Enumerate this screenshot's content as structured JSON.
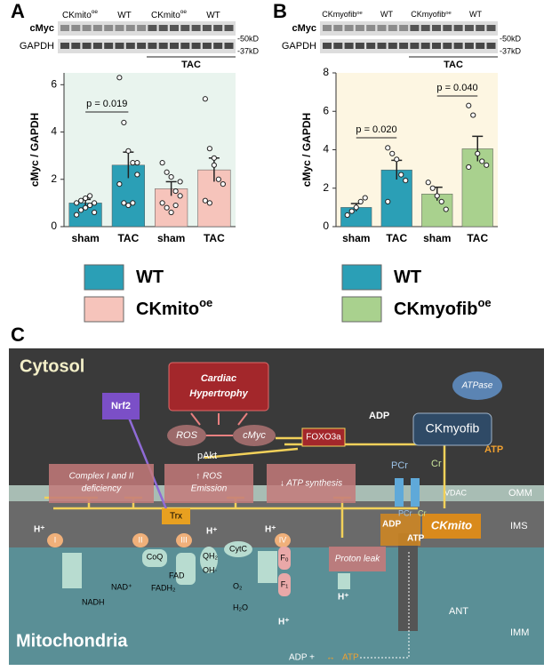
{
  "chart_data": [
    {
      "type": "bar",
      "panel_label": "A",
      "ylabel": "cMyc / GAPDH",
      "categories": [
        "sham",
        "TAC",
        "sham",
        "TAC"
      ],
      "values": [
        1.0,
        2.6,
        1.6,
        2.4
      ],
      "errors": [
        0.15,
        0.55,
        0.3,
        0.5
      ],
      "colors": [
        "#2b9fb6",
        "#2b9fb6",
        "#f6c4bb",
        "#f6c4bb"
      ],
      "points": [
        [
          0.5,
          0.7,
          0.8,
          0.9,
          1.0,
          1.0,
          1.1,
          1.2,
          1.3,
          0.6
        ],
        [
          6.3,
          4.4,
          3.2,
          2.7,
          2.2,
          1.8,
          1.0,
          0.9,
          1.0,
          2.7
        ],
        [
          2.7,
          2.3,
          2.1,
          1.5,
          1.3,
          1.0,
          0.8,
          0.6,
          0.9,
          1.9
        ],
        [
          5.4,
          3.3,
          2.6,
          2.0,
          1.8,
          1.1,
          1.0,
          2.9
        ]
      ],
      "ylim": [
        0,
        6.5
      ],
      "yticks": [
        0,
        2,
        4,
        6
      ],
      "background": "#e9f4ee",
      "annotations": [
        "p = 0.019"
      ],
      "legend": [
        {
          "name": "WT",
          "color": "#2b9fb6"
        },
        {
          "name": "CKmito",
          "sup": "oe",
          "color": "#f6c4bb"
        }
      ]
    },
    {
      "type": "bar",
      "panel_label": "B",
      "ylabel": "cMyc / GAPDH",
      "categories": [
        "sham",
        "TAC",
        "sham",
        "TAC"
      ],
      "values": [
        1.0,
        2.95,
        1.7,
        4.05
      ],
      "errors": [
        0.2,
        0.5,
        0.35,
        0.65
      ],
      "colors": [
        "#2b9fb6",
        "#2b9fb6",
        "#a9d18e",
        "#a9d18e"
      ],
      "points": [
        [
          0.6,
          0.8,
          1.0,
          1.3,
          1.5
        ],
        [
          4.1,
          3.8,
          3.5,
          2.7,
          2.4,
          1.3
        ],
        [
          2.3,
          2.0,
          1.6,
          1.3,
          0.9
        ],
        [
          6.3,
          5.8,
          3.8,
          3.4,
          3.2,
          3.1
        ]
      ],
      "ylim": [
        0,
        8
      ],
      "yticks": [
        0,
        2,
        4,
        6,
        8
      ],
      "background": "#fdf6e2",
      "annotations": [
        "p = 0.020",
        "p = 0.040"
      ],
      "legend": [
        {
          "name": "WT",
          "color": "#2b9fb6"
        },
        {
          "name": "CKmyofib",
          "sup": "oe",
          "color": "#a9d18e"
        }
      ]
    }
  ],
  "blots": [
    {
      "headers": [
        {
          "text": "CKmito",
          "sup": "oe"
        },
        {
          "text": "WT"
        },
        {
          "text": "CKmito",
          "sup": "oe"
        },
        {
          "text": "WT"
        }
      ],
      "rows": [
        "cMyc",
        "GAPDH"
      ],
      "markers": [
        "-50kD",
        "-37kD"
      ],
      "group": "TAC"
    },
    {
      "headers": [
        {
          "text": "CKmyofib",
          "sup": "oe"
        },
        {
          "text": "WT"
        },
        {
          "text": "CKmyofib",
          "sup": "oe"
        },
        {
          "text": "WT"
        }
      ],
      "rows": [
        "cMyc",
        "GAPDH"
      ],
      "markers": [
        "-50kD",
        "-37kD"
      ],
      "group": "TAC"
    }
  ],
  "diagram": {
    "panel_label": "C",
    "cytosol": "Cytosol",
    "mitochondria": "Mitochondria",
    "omm": "OMM",
    "ims": "IMS",
    "imm": "IMM",
    "vdac": "VDAC",
    "ant": "ANT",
    "hypertrophy": [
      "Cardiac",
      "Hypertrophy"
    ],
    "ros": "ROS",
    "cmyc": "cMyc",
    "pakt": "pAkt",
    "foxo3a": "FOXO3a",
    "nrf2": "Nrf2",
    "atpase": "ATPase",
    "ckmyofib": "CKmyofib",
    "ckmito": "CKmito",
    "adp": [
      "ADP",
      "ADP",
      "ADP +"
    ],
    "atp": [
      "ATP",
      "ATP",
      "ATP"
    ],
    "pcr": [
      "PCr",
      "PCr"
    ],
    "cr": [
      "Cr",
      "Cr"
    ],
    "complex_deficiency": [
      "Complex I and II",
      "deficiency"
    ],
    "ros_emission": [
      "↑ ROS",
      "Emission"
    ],
    "atp_synthesis": "↓ ATP synthesis",
    "trx": "Trx",
    "proton_leak": "Proton leak",
    "complexes": [
      "I",
      "II",
      "III",
      "IV"
    ],
    "coq": "CoQ",
    "cytc": "CytC",
    "qh2": "QH₂",
    "oh": "OH·",
    "nadh": "NADH",
    "nad": "NAD⁺",
    "fadh2": "FADH₂",
    "fad": "FAD",
    "o2": "O₂",
    "h2o": "H₂O",
    "f0": "F₀",
    "f1": "F₁",
    "h_plus": [
      "H⁺",
      "H⁺",
      "H⁺",
      "H⁺",
      "H⁺"
    ]
  }
}
